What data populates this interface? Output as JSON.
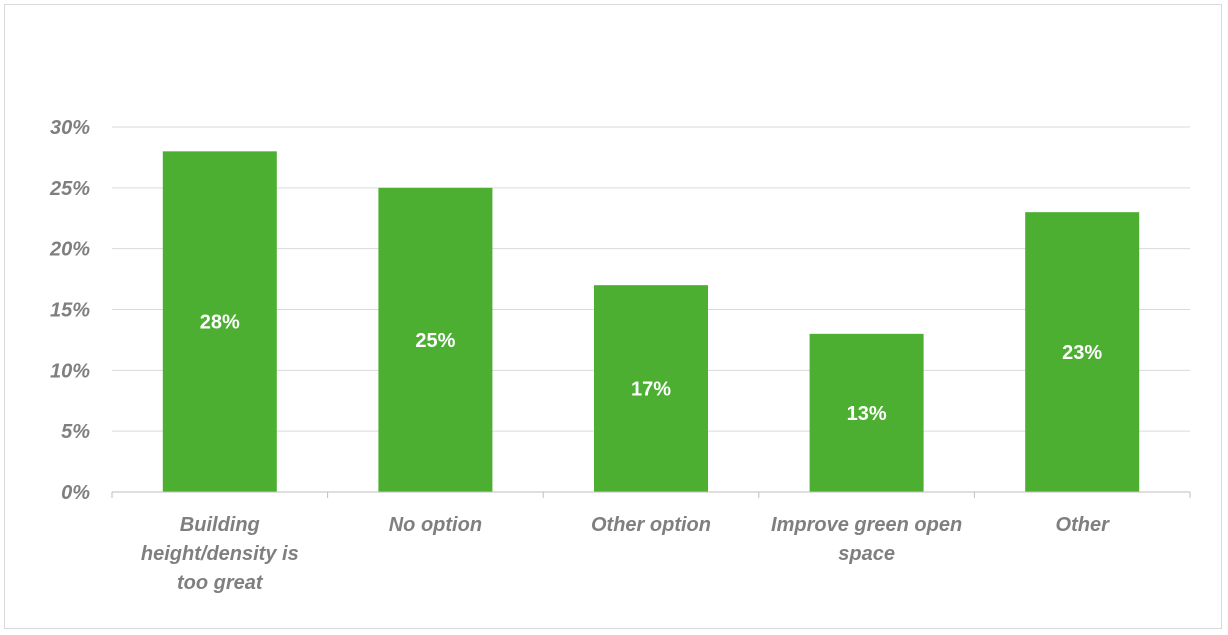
{
  "chart_data": {
    "type": "bar",
    "categories": [
      [
        "Building",
        "height/density is",
        "too great"
      ],
      [
        "No option"
      ],
      [
        "Other option"
      ],
      [
        "Improve green open",
        "space"
      ],
      [
        "Other"
      ]
    ],
    "values": [
      28,
      25,
      17,
      13,
      23
    ],
    "data_labels": [
      "28%",
      "25%",
      "17%",
      "13%",
      "23%"
    ],
    "ylim": [
      0,
      30
    ],
    "y_ticks": [
      0,
      5,
      10,
      15,
      20,
      25,
      30
    ],
    "y_tick_labels": [
      "0%",
      "5%",
      "10%",
      "15%",
      "20%",
      "25%",
      "30%"
    ],
    "title": "",
    "xlabel": "",
    "ylabel": "",
    "grid": true,
    "legend": "none",
    "colors": {
      "bar": "#4caf32",
      "grid": "#d9d9d9",
      "axis": "#bfbfbf",
      "text": "#7f7f7f",
      "data_label": "#ffffff"
    }
  }
}
